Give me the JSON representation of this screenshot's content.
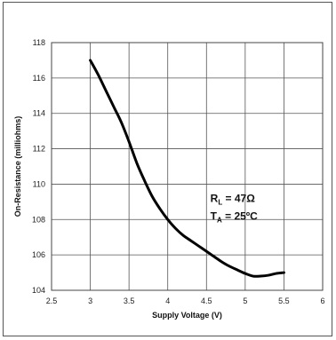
{
  "chart_data": {
    "type": "line",
    "xlabel": "Supply Voltage (V)",
    "ylabel": "On-Resistance (milliohms)",
    "xlim": [
      2.5,
      6
    ],
    "ylim": [
      104,
      118
    ],
    "x_ticks": [
      "2.5",
      "3",
      "3.5",
      "4",
      "4.5",
      "5",
      "5.5",
      "6"
    ],
    "y_ticks": [
      "104",
      "106",
      "108",
      "110",
      "112",
      "114",
      "116",
      "118"
    ],
    "grid": true,
    "legend": "none",
    "line_color": "#000000",
    "series": [
      {
        "x": [
          3.0,
          3.1,
          3.2,
          3.3,
          3.4,
          3.5,
          3.6,
          3.7,
          3.8,
          3.9,
          4.0,
          4.1,
          4.2,
          4.3,
          4.4,
          4.5,
          4.6,
          4.7,
          4.8,
          4.9,
          5.0,
          5.1,
          5.2,
          5.3,
          5.4,
          5.5
        ],
        "y": [
          117.0,
          116.2,
          115.3,
          114.4,
          113.5,
          112.4,
          111.2,
          110.2,
          109.3,
          108.6,
          108.0,
          107.5,
          107.1,
          106.8,
          106.5,
          106.2,
          105.9,
          105.6,
          105.35,
          105.15,
          104.95,
          104.8,
          104.8,
          104.85,
          104.95,
          105.0
        ]
      }
    ],
    "annotations": [
      {
        "main": "R",
        "sub": "L",
        "rest": " = 47Ω"
      },
      {
        "main": "T",
        "sub": "A",
        "rest": " = 25ºC"
      }
    ]
  }
}
